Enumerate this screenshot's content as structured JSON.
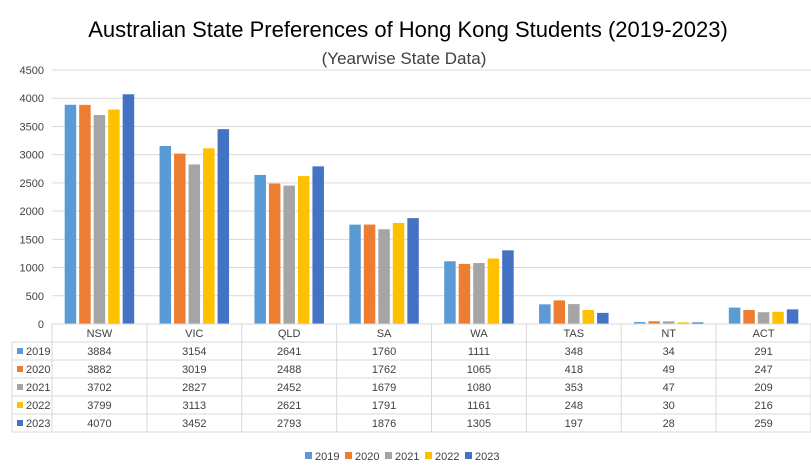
{
  "chart_data": {
    "type": "bar",
    "title": "Australian State Preferences of Hong Kong Students (2019-2023)",
    "subtitle": "(Yearwise State Data)",
    "categories": [
      "NSW",
      "VIC",
      "QLD",
      "SA",
      "WA",
      "TAS",
      "NT",
      "ACT"
    ],
    "ylim": [
      0,
      4500
    ],
    "yticks": [
      0,
      500,
      1000,
      1500,
      2000,
      2500,
      3000,
      3500,
      4000,
      4500
    ],
    "grid": true,
    "legend_position": "bottom",
    "data_table": true,
    "series": [
      {
        "name": "2019",
        "color": "#5B9BD5",
        "values": [
          3884,
          3154,
          2641,
          1760,
          1111,
          348,
          34,
          291
        ]
      },
      {
        "name": "2020",
        "color": "#ED7D31",
        "values": [
          3882,
          3019,
          2488,
          1762,
          1065,
          418,
          49,
          247
        ]
      },
      {
        "name": "2021",
        "color": "#A5A5A5",
        "values": [
          3702,
          2827,
          2452,
          1679,
          1080,
          353,
          47,
          209
        ]
      },
      {
        "name": "2022",
        "color": "#FFC000",
        "values": [
          3799,
          3113,
          2621,
          1791,
          1161,
          248,
          30,
          216
        ]
      },
      {
        "name": "2023",
        "color": "#4472C4",
        "values": [
          4070,
          3452,
          2793,
          1876,
          1305,
          197,
          28,
          259
        ]
      }
    ]
  }
}
